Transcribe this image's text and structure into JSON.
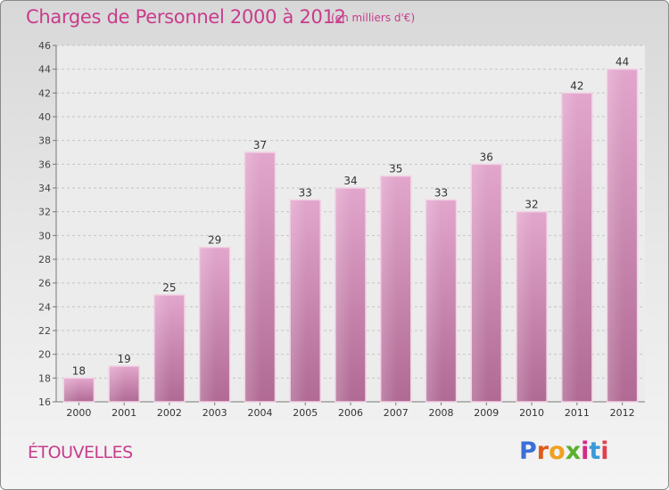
{
  "title": "Charges de Personnel 2000 à 2012",
  "subtitle": "(en milliers d'€)",
  "place": "ÉTOUVELLES",
  "logo": {
    "letters": [
      "P",
      "r",
      "o",
      "x",
      "i",
      "t",
      "i"
    ],
    "colors": [
      "#3a6fd8",
      "#e05a1e",
      "#f0a020",
      "#5ab030",
      "#d02c84",
      "#3a9ad8",
      "#e04050"
    ]
  },
  "colors": {
    "bar": "#c878a8",
    "accent": "#c83c8c"
  },
  "chart_data": {
    "type": "bar",
    "title": "Charges de Personnel 2000 à 2012",
    "subtitle": "(en milliers d'€)",
    "categories": [
      "2000",
      "2001",
      "2002",
      "2003",
      "2004",
      "2005",
      "2006",
      "2007",
      "2008",
      "2009",
      "2010",
      "2011",
      "2012"
    ],
    "values": [
      18,
      19,
      25,
      29,
      37,
      33,
      34,
      35,
      33,
      36,
      32,
      42,
      44
    ],
    "ylim": [
      16,
      46
    ],
    "yticks": [
      16,
      18,
      20,
      22,
      24,
      26,
      28,
      30,
      32,
      34,
      36,
      38,
      40,
      42,
      44,
      46
    ],
    "grid": true,
    "xlabel": "",
    "ylabel": ""
  }
}
